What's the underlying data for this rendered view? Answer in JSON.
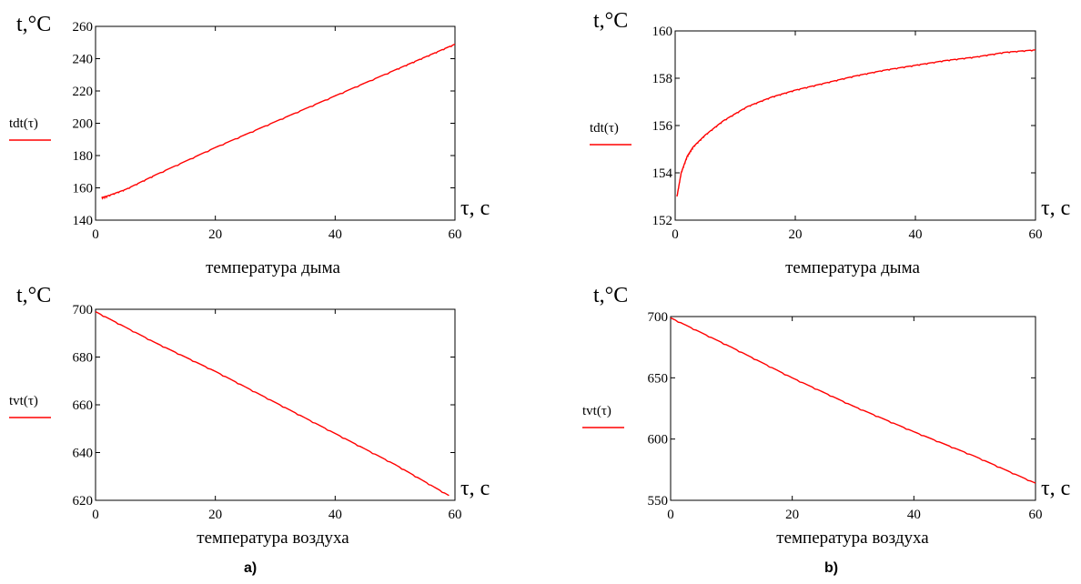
{
  "panel_labels": [
    "a)",
    "b)"
  ],
  "chart_data": [
    {
      "type": "line",
      "ylabel_units": "t,°C",
      "xlabel_units": "τ, c",
      "title": "температура дыма",
      "legend_label": "tdt(τ)",
      "series_color": "#ff0000",
      "xlim": [
        0,
        60
      ],
      "ylim": [
        140,
        260
      ],
      "xticks": [
        "0",
        "20",
        "40",
        "60"
      ],
      "yticks": [
        "140",
        "160",
        "180",
        "200",
        "220",
        "240",
        "260"
      ],
      "series": [
        {
          "x": [
            1,
            2,
            5,
            10,
            20,
            30,
            40,
            50,
            55,
            60
          ],
          "y": [
            154,
            155,
            159,
            168,
            185,
            201,
            217,
            233,
            241,
            249
          ]
        }
      ]
    },
    {
      "type": "line",
      "ylabel_units": "t,°C",
      "xlabel_units": "τ, c",
      "title": "температура дыма",
      "legend_label": "tdt(τ)",
      "series_color": "#ff0000",
      "xlim": [
        0,
        60
      ],
      "ylim": [
        152,
        160
      ],
      "xticks": [
        "0",
        "20",
        "40",
        "60"
      ],
      "yticks": [
        "152",
        "154",
        "156",
        "158",
        "160"
      ],
      "series": [
        {
          "x": [
            0.3,
            1,
            2,
            3,
            5,
            8,
            12,
            16,
            20,
            25,
            30,
            35,
            40,
            45,
            50,
            55,
            60
          ],
          "y": [
            153.0,
            154.0,
            154.7,
            155.1,
            155.6,
            156.2,
            156.8,
            157.2,
            157.5,
            157.8,
            158.1,
            158.35,
            158.55,
            158.75,
            158.9,
            159.1,
            159.2
          ]
        }
      ]
    },
    {
      "type": "line",
      "ylabel_units": "t,°C",
      "xlabel_units": "τ, c",
      "title": "температура воздуха",
      "legend_label": "tvt(τ)",
      "series_color": "#ff0000",
      "xlim": [
        0,
        60
      ],
      "ylim": [
        620,
        700
      ],
      "xticks": [
        "0",
        "20",
        "40",
        "60"
      ],
      "yticks": [
        "620",
        "640",
        "660",
        "680",
        "700"
      ],
      "series": [
        {
          "x": [
            0,
            10,
            20,
            30,
            40,
            50,
            59
          ],
          "y": [
            699,
            686,
            674,
            661,
            648,
            635,
            622
          ]
        }
      ]
    },
    {
      "type": "line",
      "ylabel_units": "t,°C",
      "xlabel_units": "τ, c",
      "title": "температура воздуха",
      "legend_label": "tvt(τ)",
      "series_color": "#ff0000",
      "xlim": [
        0,
        60
      ],
      "ylim": [
        550,
        700
      ],
      "xticks": [
        "0",
        "20",
        "40",
        "60"
      ],
      "yticks": [
        "550",
        "600",
        "650",
        "700"
      ],
      "series": [
        {
          "x": [
            0,
            10,
            20,
            30,
            40,
            50,
            60
          ],
          "y": [
            699,
            675,
            650,
            627,
            606,
            586,
            564
          ]
        }
      ]
    }
  ]
}
